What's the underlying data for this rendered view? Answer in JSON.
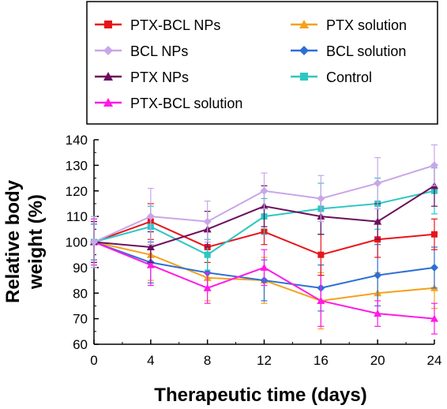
{
  "chart_data": {
    "type": "line",
    "xlabel": "Therapeutic time (days)",
    "ylabel": [
      "Relative body",
      "weight (%)"
    ],
    "x": [
      0,
      4,
      8,
      12,
      16,
      20,
      24
    ],
    "xlim": [
      0,
      24
    ],
    "ylim": [
      60,
      140
    ],
    "xticks": [
      "0",
      "4",
      "8",
      "12",
      "16",
      "20",
      "24"
    ],
    "yticks": [
      "60",
      "70",
      "80",
      "90",
      "100",
      "110",
      "120",
      "130",
      "140"
    ],
    "grid": false,
    "legend_position": "top",
    "series": [
      {
        "name": "PTX-BCL NPs",
        "color": "#e8141b",
        "marker": "square",
        "values": [
          100,
          108,
          98,
          104,
          95,
          101,
          103
        ],
        "errors": [
          8,
          7,
          6,
          5,
          8,
          7,
          6
        ]
      },
      {
        "name": "BCL NPs",
        "color": "#c9a6e8",
        "marker": "diamond",
        "values": [
          100,
          110,
          108,
          120,
          117,
          123,
          130
        ],
        "errors": [
          10,
          11,
          8,
          7,
          9,
          10,
          8
        ]
      },
      {
        "name": "PTX NPs",
        "color": "#6b0f5e",
        "marker": "triangle",
        "values": [
          100,
          98,
          105,
          114,
          110,
          108,
          122
        ],
        "errors": [
          8,
          6,
          7,
          8,
          7,
          7,
          8
        ]
      },
      {
        "name": "PTX-BCL solution",
        "color": "#ff1ae6",
        "marker": "triangle",
        "values": [
          100,
          91,
          82,
          90,
          77,
          72,
          70
        ],
        "errors": [
          9,
          8,
          6,
          7,
          10,
          5,
          6
        ]
      },
      {
        "name": "PTX solution",
        "color": "#f5a11b",
        "marker": "triangle",
        "values": [
          100,
          95,
          86,
          85,
          77,
          80,
          82
        ],
        "errors": [
          9,
          10,
          9,
          9,
          11,
          8,
          8
        ]
      },
      {
        "name": "BCL solution",
        "color": "#2e6fd6",
        "marker": "diamond",
        "values": [
          100,
          92,
          88,
          85,
          82,
          87,
          90
        ],
        "errors": [
          7,
          8,
          7,
          8,
          9,
          12,
          8
        ]
      },
      {
        "name": "Control",
        "color": "#2bc7c4",
        "marker": "square",
        "values": [
          100,
          106,
          95,
          110,
          113,
          115,
          120
        ],
        "errors": [
          10,
          8,
          6,
          7,
          10,
          10,
          9
        ]
      }
    ]
  }
}
